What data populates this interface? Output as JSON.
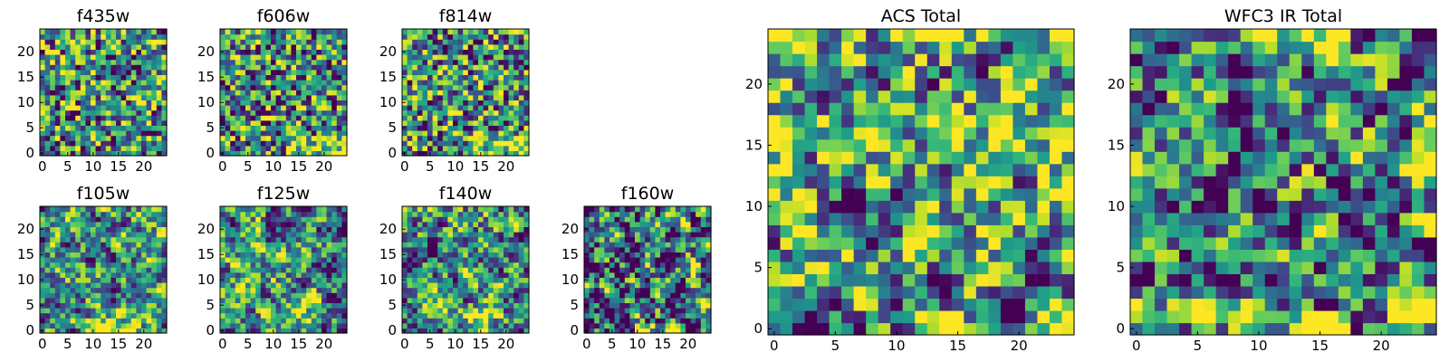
{
  "chart_data": [
    {
      "type": "heatmap",
      "title": "f435w",
      "xticks": [
        0,
        5,
        10,
        15,
        20
      ],
      "yticks": [
        0,
        5,
        10,
        15,
        20
      ],
      "xlim": [
        0,
        25
      ],
      "ylim": [
        0,
        25
      ],
      "grid_size": 25,
      "colormap": "viridis",
      "seed": 11,
      "bias": "flat",
      "contrast": 1.0
    },
    {
      "type": "heatmap",
      "title": "f606w",
      "xticks": [
        0,
        5,
        10,
        15,
        20
      ],
      "yticks": [
        0,
        5,
        10,
        15,
        20
      ],
      "xlim": [
        0,
        25
      ],
      "ylim": [
        0,
        25
      ],
      "grid_size": 25,
      "colormap": "viridis",
      "seed": 23,
      "bias": "bottom-right-bright",
      "contrast": 1.0
    },
    {
      "type": "heatmap",
      "title": "f814w",
      "xticks": [
        0,
        5,
        10,
        15,
        20
      ],
      "yticks": [
        0,
        5,
        10,
        15,
        20
      ],
      "xlim": [
        0,
        25
      ],
      "ylim": [
        0,
        25
      ],
      "grid_size": 25,
      "colormap": "viridis",
      "seed": 37,
      "bias": "bottom-right-bright",
      "contrast": 1.0
    },
    {
      "type": "heatmap",
      "title": "f105w",
      "xticks": [
        0,
        5,
        10,
        15,
        20
      ],
      "yticks": [
        0,
        5,
        10,
        15,
        20
      ],
      "xlim": [
        0,
        25
      ],
      "ylim": [
        0,
        25
      ],
      "grid_size": 25,
      "colormap": "viridis",
      "seed": 41,
      "bias": "bottom-bright",
      "contrast": 0.9
    },
    {
      "type": "heatmap",
      "title": "f125w",
      "xticks": [
        0,
        5,
        10,
        15,
        20
      ],
      "yticks": [
        0,
        5,
        10,
        15,
        20
      ],
      "xlim": [
        0,
        25
      ],
      "ylim": [
        0,
        25
      ],
      "grid_size": 25,
      "colormap": "viridis",
      "seed": 53,
      "bias": "bottom-bright",
      "contrast": 0.9
    },
    {
      "type": "heatmap",
      "title": "f140w",
      "xticks": [
        0,
        5,
        10,
        15,
        20
      ],
      "yticks": [
        0,
        5,
        10,
        15,
        20
      ],
      "xlim": [
        0,
        25
      ],
      "ylim": [
        0,
        25
      ],
      "grid_size": 25,
      "colormap": "viridis",
      "seed": 67,
      "bias": "bottom-bright",
      "contrast": 0.9
    },
    {
      "type": "heatmap",
      "title": "f160w",
      "xticks": [
        0,
        5,
        10,
        15,
        20
      ],
      "yticks": [
        0,
        5,
        10,
        15,
        20
      ],
      "xlim": [
        0,
        25
      ],
      "ylim": [
        0,
        25
      ],
      "grid_size": 25,
      "colormap": "viridis",
      "seed": 79,
      "bias": "dark",
      "contrast": 0.7
    },
    {
      "type": "heatmap",
      "title": "ACS Total",
      "xticks": [
        0,
        5,
        10,
        15,
        20
      ],
      "yticks": [
        0,
        5,
        10,
        15,
        20
      ],
      "xlim": [
        0,
        25
      ],
      "ylim": [
        0,
        25
      ],
      "grid_size": 25,
      "colormap": "viridis",
      "seed": 91,
      "bias": "bright",
      "contrast": 0.75
    },
    {
      "type": "heatmap",
      "title": "WFC3 IR Total",
      "xticks": [
        0,
        5,
        10,
        15,
        20
      ],
      "yticks": [
        0,
        5,
        10,
        15,
        20
      ],
      "xlim": [
        0,
        25
      ],
      "ylim": [
        0,
        25
      ],
      "grid_size": 25,
      "colormap": "viridis",
      "seed": 103,
      "bias": "dark-bottom-bright",
      "contrast": 0.75
    }
  ]
}
